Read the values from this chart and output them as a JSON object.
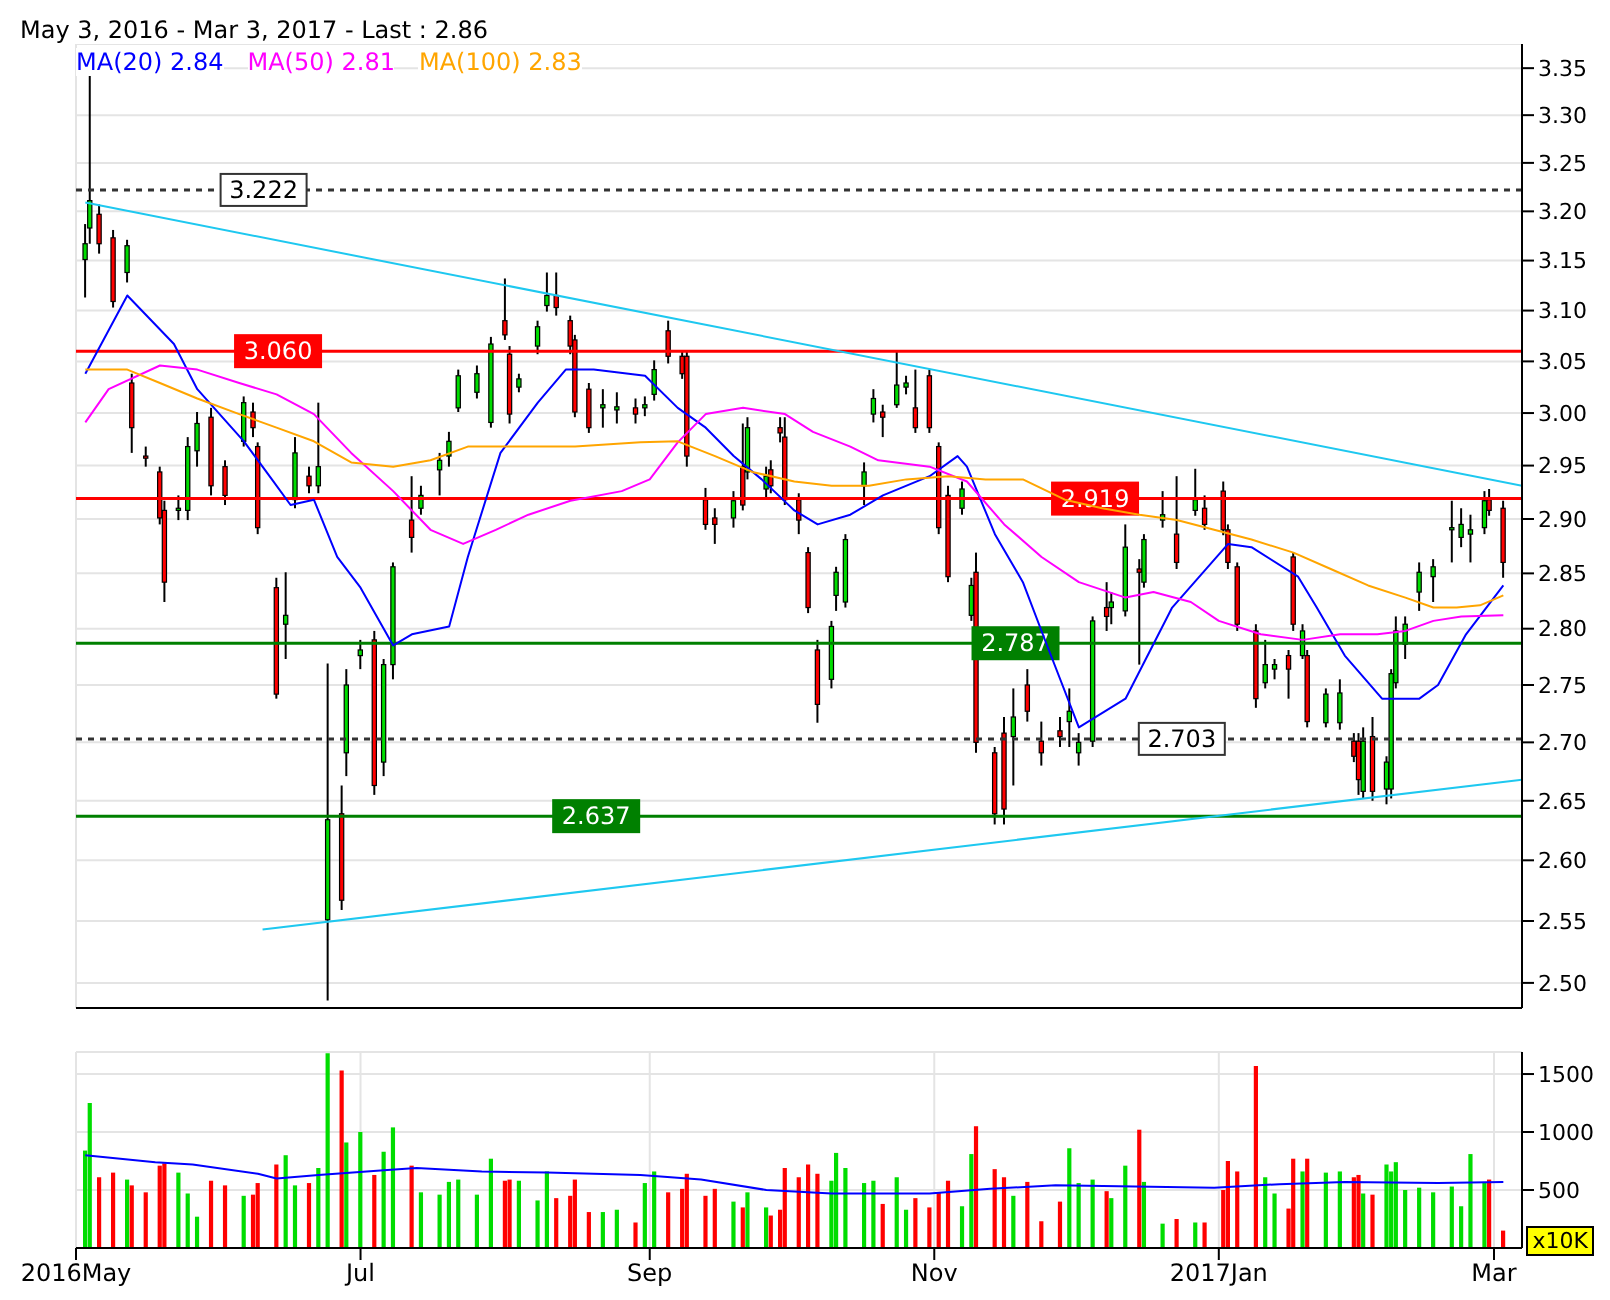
{
  "chart_data": [
    {
      "type": "candlestick",
      "title": "May 3, 2016 - Mar 3, 2017 - Last : 2.86",
      "x": [
        "2016-05-03",
        "2016-05-04",
        "2016-05-06",
        "2016-05-09",
        "2016-05-12",
        "2016-05-13",
        "2016-05-16",
        "2016-05-19",
        "2016-05-20",
        "2016-05-23",
        "2016-05-25",
        "2016-05-27",
        "2016-05-30",
        "2016-06-02",
        "2016-06-06",
        "2016-06-08",
        "2016-06-09",
        "2016-06-13",
        "2016-06-15",
        "2016-06-17",
        "2016-06-20",
        "2016-06-22",
        "2016-06-24",
        "2016-06-27",
        "2016-06-28",
        "2016-07-01",
        "2016-07-04",
        "2016-07-06",
        "2016-07-08",
        "2016-07-12",
        "2016-07-14",
        "2016-07-18",
        "2016-07-20",
        "2016-07-22",
        "2016-07-26",
        "2016-07-29",
        "2016-08-01",
        "2016-08-02",
        "2016-08-04",
        "2016-08-08",
        "2016-08-10",
        "2016-08-12",
        "2016-08-15",
        "2016-08-16",
        "2016-08-19",
        "2016-08-22",
        "2016-08-25",
        "2016-08-29",
        "2016-08-31",
        "2016-09-02",
        "2016-09-05",
        "2016-09-08",
        "2016-09-09",
        "2016-09-13",
        "2016-09-15",
        "2016-09-19",
        "2016-09-21",
        "2016-09-22",
        "2016-09-26",
        "2016-09-27",
        "2016-09-29",
        "2016-09-30",
        "2016-10-03",
        "2016-10-05",
        "2016-10-07",
        "2016-10-10",
        "2016-10-11",
        "2016-10-13",
        "2016-10-17",
        "2016-10-19",
        "2016-10-21",
        "2016-10-24",
        "2016-10-26",
        "2016-10-28",
        "2016-10-31",
        "2016-11-02",
        "2016-11-04",
        "2016-11-07",
        "2016-11-09",
        "2016-11-10",
        "2016-11-14",
        "2016-11-16",
        "2016-11-18",
        "2016-11-21",
        "2016-11-24",
        "2016-11-28",
        "2016-11-30",
        "2016-12-02",
        "2016-12-05",
        "2016-12-08",
        "2016-12-09",
        "2016-12-12",
        "2016-12-15",
        "2016-12-16",
        "2016-12-20",
        "2016-12-23",
        "2016-12-27",
        "2016-12-29",
        "2017-01-02",
        "2017-01-03",
        "2017-01-05",
        "2017-01-09",
        "2017-01-11",
        "2017-01-13",
        "2017-01-16",
        "2017-01-17",
        "2017-01-19",
        "2017-01-20",
        "2017-01-24",
        "2017-01-27",
        "2017-01-30",
        "2017-01-31",
        "2017-02-01",
        "2017-02-03",
        "2017-02-06",
        "2017-02-07",
        "2017-02-08",
        "2017-02-10",
        "2017-02-13",
        "2017-02-16",
        "2017-02-20",
        "2017-02-22",
        "2017-02-24",
        "2017-02-27",
        "2017-02-28",
        "2017-03-03"
      ],
      "ohlc": [
        [
          3.151,
          3.187,
          3.113,
          3.167
        ],
        [
          3.183,
          3.349,
          3.167,
          3.211
        ],
        [
          3.197,
          3.207,
          3.157,
          3.167
        ],
        [
          3.173,
          3.181,
          3.103,
          3.109
        ],
        [
          3.138,
          3.171,
          3.128,
          3.165
        ],
        [
          3.029,
          3.038,
          2.962,
          2.986
        ],
        [
          2.959,
          2.968,
          2.949,
          2.957
        ],
        [
          2.944,
          2.949,
          2.895,
          2.901
        ],
        [
          2.908,
          2.917,
          2.824,
          2.842
        ],
        [
          2.908,
          2.922,
          2.899,
          2.91
        ],
        [
          2.908,
          2.977,
          2.899,
          2.968
        ],
        [
          2.964,
          3.001,
          2.949,
          2.99
        ],
        [
          2.996,
          3.005,
          2.922,
          2.931
        ],
        [
          2.949,
          2.955,
          2.913,
          2.922
        ],
        [
          2.973,
          3.016,
          2.968,
          3.01
        ],
        [
          3.001,
          3.01,
          2.977,
          2.986
        ],
        [
          2.968,
          2.972,
          2.886,
          2.892
        ],
        [
          2.837,
          2.846,
          2.738,
          2.742
        ],
        [
          2.804,
          2.851,
          2.773,
          2.812
        ],
        [
          2.918,
          2.977,
          2.91,
          2.962
        ],
        [
          2.94,
          2.949,
          2.924,
          2.931
        ],
        [
          2.931,
          3.01,
          2.924,
          2.949
        ],
        [
          2.551,
          2.769,
          2.486,
          2.634
        ],
        [
          2.639,
          2.663,
          2.559,
          2.567
        ],
        [
          2.691,
          2.764,
          2.671,
          2.75
        ],
        [
          2.776,
          2.79,
          2.764,
          2.781
        ],
        [
          2.79,
          2.798,
          2.655,
          2.663
        ],
        [
          2.683,
          2.773,
          2.671,
          2.768
        ],
        [
          2.768,
          2.86,
          2.755,
          2.856
        ],
        [
          2.899,
          2.94,
          2.869,
          2.883
        ],
        [
          2.91,
          2.931,
          2.904,
          2.922
        ],
        [
          2.946,
          2.962,
          2.922,
          2.955
        ],
        [
          2.959,
          2.982,
          2.949,
          2.973
        ],
        [
          3.005,
          3.042,
          3.001,
          3.036
        ],
        [
          3.02,
          3.046,
          3.014,
          3.038
        ],
        [
          2.991,
          3.074,
          2.986,
          3.067
        ],
        [
          3.09,
          3.132,
          3.071,
          3.076
        ],
        [
          3.057,
          3.065,
          2.99,
          2.999
        ],
        [
          3.025,
          3.038,
          3.02,
          3.033
        ],
        [
          3.065,
          3.09,
          3.057,
          3.084
        ],
        [
          3.105,
          3.138,
          3.099,
          3.115
        ],
        [
          3.115,
          3.138,
          3.095,
          3.103
        ],
        [
          3.09,
          3.095,
          3.057,
          3.065
        ],
        [
          3.071,
          3.076,
          2.996,
          3.001
        ],
        [
          3.023,
          3.029,
          2.981,
          2.986
        ],
        [
          3.005,
          3.023,
          2.986,
          3.008
        ],
        [
          3.003,
          3.02,
          2.99,
          3.006
        ],
        [
          3.005,
          3.014,
          2.99,
          2.999
        ],
        [
          3.005,
          3.016,
          2.997,
          3.008
        ],
        [
          3.018,
          3.051,
          3.012,
          3.042
        ],
        [
          3.08,
          3.09,
          3.048,
          3.055
        ],
        [
          3.055,
          3.061,
          3.033,
          3.038
        ],
        [
          3.055,
          3.061,
          2.949,
          2.959
        ],
        [
          2.918,
          2.929,
          2.89,
          2.895
        ],
        [
          2.901,
          2.91,
          2.877,
          2.895
        ],
        [
          2.901,
          2.926,
          2.892,
          2.917
        ],
        [
          2.949,
          2.99,
          2.908,
          2.913
        ],
        [
          2.944,
          2.996,
          2.937,
          2.986
        ],
        [
          2.928,
          2.949,
          2.92,
          2.94
        ],
        [
          2.946,
          2.955,
          2.924,
          2.931
        ],
        [
          2.986,
          2.996,
          2.972,
          2.981
        ],
        [
          2.977,
          2.996,
          2.913,
          2.918
        ],
        [
          2.918,
          2.924,
          2.886,
          2.899
        ],
        [
          2.869,
          2.874,
          2.814,
          2.819
        ],
        [
          2.781,
          2.79,
          2.717,
          2.733
        ],
        [
          2.755,
          2.807,
          2.747,
          2.802
        ],
        [
          2.83,
          2.856,
          2.816,
          2.851
        ],
        [
          2.824,
          2.886,
          2.819,
          2.881
        ],
        [
          2.931,
          2.953,
          2.913,
          2.944
        ],
        [
          2.999,
          3.023,
          2.991,
          3.014
        ],
        [
          3.001,
          3.008,
          2.977,
          2.996
        ],
        [
          3.008,
          3.061,
          3.005,
          3.027
        ],
        [
          3.025,
          3.036,
          3.018,
          3.029
        ],
        [
          3.005,
          3.042,
          2.981,
          2.986
        ],
        [
          3.036,
          3.042,
          2.981,
          2.986
        ],
        [
          2.968,
          2.972,
          2.886,
          2.892
        ],
        [
          2.922,
          2.931,
          2.842,
          2.847
        ],
        [
          2.91,
          2.935,
          2.904,
          2.928
        ],
        [
          2.812,
          2.846,
          2.807,
          2.839
        ],
        [
          2.851,
          2.869,
          2.691,
          2.7
        ],
        [
          2.691,
          2.696,
          2.63,
          2.639
        ],
        [
          2.708,
          2.722,
          2.63,
          2.643
        ],
        [
          2.705,
          2.747,
          2.663,
          2.722
        ],
        [
          2.75,
          2.764,
          2.718,
          2.727
        ],
        [
          2.701,
          2.718,
          2.68,
          2.691
        ],
        [
          2.71,
          2.722,
          2.696,
          2.705
        ],
        [
          2.718,
          2.747,
          2.696,
          2.727
        ],
        [
          2.691,
          2.708,
          2.68,
          2.7
        ],
        [
          2.701,
          2.811,
          2.696,
          2.807
        ],
        [
          2.819,
          2.842,
          2.798,
          2.811
        ],
        [
          2.819,
          2.833,
          2.804,
          2.824
        ],
        [
          2.816,
          2.895,
          2.811,
          2.874
        ],
        [
          2.854,
          2.863,
          2.768,
          2.851
        ],
        [
          2.842,
          2.886,
          2.837,
          2.881
        ],
        [
          2.899,
          2.926,
          2.892,
          2.904
        ],
        [
          2.886,
          2.94,
          2.854,
          2.86
        ],
        [
          2.908,
          2.947,
          2.903,
          2.918
        ],
        [
          2.91,
          2.922,
          2.89,
          2.895
        ],
        [
          2.926,
          2.935,
          2.885,
          2.89
        ],
        [
          2.89,
          2.895,
          2.854,
          2.86
        ],
        [
          2.856,
          2.86,
          2.798,
          2.804
        ],
        [
          2.798,
          2.804,
          2.73,
          2.738
        ],
        [
          2.752,
          2.79,
          2.747,
          2.768
        ],
        [
          2.764,
          2.773,
          2.755,
          2.768
        ],
        [
          2.776,
          2.781,
          2.738,
          2.764
        ],
        [
          2.865,
          2.869,
          2.798,
          2.804
        ],
        [
          2.776,
          2.804,
          2.773,
          2.798
        ],
        [
          2.776,
          2.781,
          2.713,
          2.718
        ],
        [
          2.717,
          2.747,
          2.713,
          2.742
        ],
        [
          2.717,
          2.755,
          2.711,
          2.743
        ],
        [
          2.701,
          2.708,
          2.683,
          2.688
        ],
        [
          2.701,
          2.708,
          2.655,
          2.668
        ],
        [
          2.658,
          2.713,
          2.652,
          2.701
        ],
        [
          2.705,
          2.722,
          2.65,
          2.658
        ],
        [
          2.66,
          2.688,
          2.647,
          2.683
        ],
        [
          2.66,
          2.764,
          2.652,
          2.76
        ],
        [
          2.752,
          2.811,
          2.747,
          2.798
        ],
        [
          2.786,
          2.811,
          2.773,
          2.804
        ],
        [
          2.833,
          2.86,
          2.816,
          2.851
        ],
        [
          2.847,
          2.863,
          2.824,
          2.856
        ],
        [
          2.89,
          2.917,
          2.86,
          2.892
        ],
        [
          2.883,
          2.91,
          2.874,
          2.895
        ],
        [
          2.886,
          2.904,
          2.86,
          2.89
        ],
        [
          2.892,
          2.926,
          2.886,
          2.917
        ],
        [
          2.918,
          2.928,
          2.903,
          2.908
        ],
        [
          2.91,
          2.917,
          2.846,
          2.86
        ]
      ],
      "colors": [
        "#00dd00",
        "#00dd00",
        "#ff0000",
        "#ff0000",
        "#00dd00",
        "#ff0000",
        "#ff0000",
        "#ff0000",
        "#ff0000",
        "#00dd00",
        "#00dd00",
        "#00dd00",
        "#ff0000",
        "#ff0000",
        "#00dd00",
        "#ff0000",
        "#ff0000",
        "#ff0000",
        "#00dd00",
        "#00dd00",
        "#ff0000",
        "#00dd00",
        "#00dd00",
        "#ff0000",
        "#00dd00",
        "#00dd00",
        "#ff0000",
        "#00dd00",
        "#00dd00",
        "#ff0000",
        "#00dd00",
        "#00dd00",
        "#00dd00",
        "#00dd00",
        "#00dd00",
        "#00dd00",
        "#ff0000",
        "#ff0000",
        "#00dd00",
        "#00dd00",
        "#00dd00",
        "#ff0000",
        "#ff0000",
        "#ff0000",
        "#ff0000",
        "#00dd00",
        "#00dd00",
        "#ff0000",
        "#00dd00",
        "#00dd00",
        "#ff0000",
        "#ff0000",
        "#ff0000",
        "#ff0000",
        "#ff0000",
        "#00dd00",
        "#ff0000",
        "#00dd00",
        "#00dd00",
        "#ff0000",
        "#ff0000",
        "#ff0000",
        "#ff0000",
        "#ff0000",
        "#ff0000",
        "#00dd00",
        "#00dd00",
        "#00dd00",
        "#00dd00",
        "#00dd00",
        "#ff0000",
        "#00dd00",
        "#00dd00",
        "#ff0000",
        "#ff0000",
        "#ff0000",
        "#ff0000",
        "#00dd00",
        "#00dd00",
        "#ff0000",
        "#ff0000",
        "#ff0000",
        "#00dd00",
        "#ff0000",
        "#ff0000",
        "#ff0000",
        "#00dd00",
        "#00dd00",
        "#00dd00",
        "#ff0000",
        "#00dd00",
        "#00dd00",
        "#ff0000",
        "#00dd00",
        "#00dd00",
        "#ff0000",
        "#00dd00",
        "#ff0000",
        "#ff0000",
        "#ff0000",
        "#ff0000",
        "#ff0000",
        "#00dd00",
        "#00dd00",
        "#ff0000",
        "#ff0000",
        "#00dd00",
        "#ff0000",
        "#00dd00",
        "#00dd00",
        "#ff0000",
        "#ff0000",
        "#00dd00",
        "#ff0000",
        "#00dd00",
        "#00dd00",
        "#00dd00",
        "#00dd00",
        "#00dd00",
        "#00dd00",
        "#00dd00",
        "#00dd00",
        "#00dd00",
        "#00dd00",
        "#ff0000",
        "#ff0000"
      ],
      "series": [
        {
          "type": "line",
          "name": "MA(20)  2.84",
          "color": "#0000ff",
          "x": [
            "2016-05-03",
            "2016-05-12",
            "2016-05-22",
            "2016-05-27",
            "2016-06-06",
            "2016-06-12",
            "2016-06-16",
            "2016-06-21",
            "2016-06-26",
            "2016-07-01",
            "2016-07-08",
            "2016-07-12",
            "2016-07-20",
            "2016-07-24",
            "2016-07-31",
            "2016-08-08",
            "2016-08-14",
            "2016-08-20",
            "2016-08-31",
            "2016-09-07",
            "2016-09-13",
            "2016-09-19",
            "2016-09-25",
            "2016-10-02",
            "2016-10-07",
            "2016-10-14",
            "2016-10-21",
            "2016-10-31",
            "2016-11-06",
            "2016-11-08",
            "2016-11-14",
            "2016-11-20",
            "2016-11-25",
            "2016-12-02",
            "2016-12-12",
            "2016-12-22",
            "2017-01-03",
            "2017-01-08",
            "2017-01-18",
            "2017-01-22",
            "2017-01-28",
            "2017-02-05",
            "2017-02-13",
            "2017-02-17",
            "2017-02-23",
            "2017-03-03"
          ],
          "values": [
            3.038,
            3.115,
            3.067,
            3.023,
            2.973,
            2.937,
            2.913,
            2.918,
            2.865,
            2.837,
            2.785,
            2.795,
            2.802,
            2.865,
            2.962,
            3.01,
            3.042,
            3.042,
            3.036,
            3.005,
            2.986,
            2.959,
            2.937,
            2.908,
            2.895,
            2.904,
            2.922,
            2.94,
            2.959,
            2.949,
            2.886,
            2.842,
            2.787,
            2.713,
            2.738,
            2.819,
            2.877,
            2.874,
            2.847,
            2.819,
            2.776,
            2.738,
            2.738,
            2.75,
            2.795,
            2.839
          ]
        },
        {
          "type": "line",
          "name": "MA(50)  2.81",
          "color": "#ff00ff",
          "x": [
            "2016-05-03",
            "2016-05-08",
            "2016-05-19",
            "2016-05-27",
            "2016-06-05",
            "2016-06-13",
            "2016-06-21",
            "2016-06-29",
            "2016-07-08",
            "2016-07-16",
            "2016-07-23",
            "2016-07-30",
            "2016-08-06",
            "2016-08-15",
            "2016-08-26",
            "2016-09-01",
            "2016-09-07",
            "2016-09-13",
            "2016-09-21",
            "2016-09-30",
            "2016-10-06",
            "2016-10-14",
            "2016-10-20",
            "2016-10-31",
            "2016-11-08",
            "2016-11-16",
            "2016-11-24",
            "2016-12-02",
            "2016-12-12",
            "2016-12-18",
            "2016-12-26",
            "2017-01-01",
            "2017-01-10",
            "2017-01-19",
            "2017-01-27",
            "2017-02-04",
            "2017-02-10",
            "2017-02-16",
            "2017-02-22",
            "2017-03-03"
          ],
          "values": [
            2.991,
            3.023,
            3.046,
            3.042,
            3.029,
            3.018,
            2.999,
            2.962,
            2.926,
            2.89,
            2.877,
            2.89,
            2.904,
            2.917,
            2.926,
            2.937,
            2.972,
            2.999,
            3.005,
            2.999,
            2.982,
            2.968,
            2.955,
            2.949,
            2.935,
            2.895,
            2.865,
            2.842,
            2.828,
            2.833,
            2.824,
            2.807,
            2.795,
            2.79,
            2.795,
            2.795,
            2.798,
            2.807,
            2.811,
            2.812
          ]
        },
        {
          "type": "line",
          "name": "MA(100)  2.83",
          "color": "#ffa500",
          "x": [
            "2016-05-03",
            "2016-05-12",
            "2016-05-19",
            "2016-05-27",
            "2016-06-05",
            "2016-06-13",
            "2016-06-21",
            "2016-06-29",
            "2016-07-08",
            "2016-07-16",
            "2016-07-24",
            "2016-08-01",
            "2016-08-16",
            "2016-08-30",
            "2016-09-07",
            "2016-09-15",
            "2016-09-23",
            "2016-10-02",
            "2016-10-10",
            "2016-10-18",
            "2016-10-26",
            "2016-11-04",
            "2016-11-12",
            "2016-11-20",
            "2016-11-29",
            "2016-12-07",
            "2016-12-15",
            "2016-12-23",
            "2016-12-31",
            "2017-01-08",
            "2017-01-17",
            "2017-01-25",
            "2017-02-02",
            "2017-02-10",
            "2017-02-16",
            "2017-02-21",
            "2017-02-26",
            "2017-03-03"
          ],
          "values": [
            3.042,
            3.042,
            3.029,
            3.014,
            2.999,
            2.986,
            2.973,
            2.953,
            2.949,
            2.955,
            2.968,
            2.968,
            2.968,
            2.972,
            2.973,
            2.959,
            2.944,
            2.935,
            2.931,
            2.931,
            2.937,
            2.94,
            2.937,
            2.937,
            2.918,
            2.91,
            2.904,
            2.899,
            2.89,
            2.881,
            2.869,
            2.854,
            2.839,
            2.828,
            2.819,
            2.819,
            2.821,
            2.83
          ]
        },
        {
          "type": "line",
          "color": "#1ec8f0",
          "x": [
            "2016-05-03",
            "2017-03-07"
          ],
          "values": [
            3.209,
            2.931
          ]
        },
        {
          "type": "line",
          "color": "#1ec8f0",
          "x": [
            "2016-06-10",
            "2017-03-07"
          ],
          "values": [
            2.543,
            2.668
          ]
        }
      ],
      "ref_lines": [
        {
          "axis": "y",
          "value": 3.222,
          "label": "3.222",
          "color": "#333333",
          "line_style": "dashed"
        },
        {
          "axis": "y",
          "value": 3.06,
          "label": "3.060",
          "color": "#ff0000"
        },
        {
          "axis": "y",
          "value": 2.919,
          "label": "2.919",
          "color": "#ff0000"
        },
        {
          "axis": "y",
          "value": 2.787,
          "label": "2.787",
          "color": "#008000"
        },
        {
          "axis": "y",
          "value": 2.703,
          "label": "2.703",
          "color": "#333333",
          "line_style": "dashed"
        },
        {
          "axis": "y",
          "value": 2.637,
          "label": "2.637",
          "color": "#008000"
        }
      ],
      "log": "y",
      "ylim": [
        2.48,
        3.376
      ],
      "yticks": [
        {
          "value": 2.5,
          "label": "2.50"
        },
        {
          "value": 2.55,
          "label": "2.55"
        },
        {
          "value": 2.6,
          "label": "2.60"
        },
        {
          "value": 2.65,
          "label": "2.65"
        },
        {
          "value": 2.7,
          "label": "2.70"
        },
        {
          "value": 2.75,
          "label": "2.75"
        },
        {
          "value": 2.8,
          "label": "2.80"
        },
        {
          "value": 2.85,
          "label": "2.85"
        },
        {
          "value": 2.9,
          "label": "2.90"
        },
        {
          "value": 2.95,
          "label": "2.95"
        },
        {
          "value": 3.0,
          "label": "3.00"
        },
        {
          "value": 3.05,
          "label": "3.05"
        },
        {
          "value": 3.1,
          "label": "3.10"
        },
        {
          "value": 3.15,
          "label": "3.15"
        },
        {
          "value": 3.2,
          "label": "3.20"
        },
        {
          "value": 3.25,
          "label": "3.25"
        },
        {
          "value": 3.3,
          "label": "3.30"
        },
        {
          "value": 3.35,
          "label": "3.35"
        }
      ],
      "xlim": [
        "2016-05-01",
        "2017-03-07"
      ],
      "xticks": [
        {
          "value": "2016-05-01",
          "label": null
        },
        {
          "value": "2016-07-01",
          "label": null
        },
        {
          "value": "2016-09-01",
          "label": null
        },
        {
          "value": "2016-11-01",
          "label": null
        },
        {
          "value": "2017-01-01",
          "label": null
        },
        {
          "value": "2017-03-01",
          "label": null
        }
      ],
      "tick_labels": "y",
      "grid": true,
      "legend": "top left"
    },
    {
      "type": "bar",
      "ylabel": "x10K",
      "x": [
        "2016-05-03",
        "2016-05-04",
        "2016-05-06",
        "2016-05-09",
        "2016-05-12",
        "2016-05-13",
        "2016-05-16",
        "2016-05-19",
        "2016-05-20",
        "2016-05-23",
        "2016-05-25",
        "2016-05-27",
        "2016-05-30",
        "2016-06-02",
        "2016-06-06",
        "2016-06-08",
        "2016-06-09",
        "2016-06-13",
        "2016-06-15",
        "2016-06-17",
        "2016-06-20",
        "2016-06-22",
        "2016-06-24",
        "2016-06-27",
        "2016-06-28",
        "2016-07-01",
        "2016-07-04",
        "2016-07-06",
        "2016-07-08",
        "2016-07-12",
        "2016-07-14",
        "2016-07-18",
        "2016-07-20",
        "2016-07-22",
        "2016-07-26",
        "2016-07-29",
        "2016-08-01",
        "2016-08-02",
        "2016-08-04",
        "2016-08-08",
        "2016-08-10",
        "2016-08-12",
        "2016-08-15",
        "2016-08-16",
        "2016-08-19",
        "2016-08-22",
        "2016-08-25",
        "2016-08-29",
        "2016-08-31",
        "2016-09-02",
        "2016-09-05",
        "2016-09-08",
        "2016-09-09",
        "2016-09-13",
        "2016-09-15",
        "2016-09-19",
        "2016-09-21",
        "2016-09-22",
        "2016-09-26",
        "2016-09-27",
        "2016-09-29",
        "2016-09-30",
        "2016-10-03",
        "2016-10-05",
        "2016-10-07",
        "2016-10-10",
        "2016-10-11",
        "2016-10-13",
        "2016-10-17",
        "2016-10-19",
        "2016-10-21",
        "2016-10-24",
        "2016-10-26",
        "2016-10-28",
        "2016-10-31",
        "2016-11-02",
        "2016-11-04",
        "2016-11-07",
        "2016-11-09",
        "2016-11-10",
        "2016-11-14",
        "2016-11-16",
        "2016-11-18",
        "2016-11-21",
        "2016-11-24",
        "2016-11-28",
        "2016-11-30",
        "2016-12-02",
        "2016-12-05",
        "2016-12-08",
        "2016-12-09",
        "2016-12-12",
        "2016-12-15",
        "2016-12-16",
        "2016-12-20",
        "2016-12-23",
        "2016-12-27",
        "2016-12-29",
        "2017-01-02",
        "2017-01-03",
        "2017-01-05",
        "2017-01-09",
        "2017-01-11",
        "2017-01-13",
        "2017-01-16",
        "2017-01-17",
        "2017-01-19",
        "2017-01-20",
        "2017-01-24",
        "2017-01-27",
        "2017-01-30",
        "2017-01-31",
        "2017-02-01",
        "2017-02-03",
        "2017-02-06",
        "2017-02-07",
        "2017-02-08",
        "2017-02-10",
        "2017-02-13",
        "2017-02-16",
        "2017-02-20",
        "2017-02-22",
        "2017-02-24",
        "2017-02-27",
        "2017-02-28",
        "2017-03-03"
      ],
      "series": [
        {
          "type": "bar",
          "values": [
            840,
            1250,
            610,
            650,
            590,
            540,
            480,
            710,
            730,
            650,
            470,
            270,
            580,
            540,
            450,
            460,
            560,
            720,
            800,
            540,
            560,
            690,
            1680,
            1530,
            910,
            1000,
            630,
            830,
            1040,
            710,
            480,
            460,
            570,
            590,
            460,
            770,
            580,
            590,
            580,
            410,
            660,
            430,
            450,
            590,
            310,
            310,
            330,
            220,
            560,
            660,
            480,
            510,
            640,
            450,
            510,
            400,
            350,
            480,
            350,
            280,
            330,
            690,
            610,
            720,
            640,
            580,
            820,
            690,
            560,
            580,
            380,
            610,
            330,
            430,
            350,
            480,
            580,
            360,
            810,
            1050,
            680,
            610,
            450,
            570,
            230,
            400,
            860,
            560,
            590,
            490,
            430,
            710,
            1020,
            570,
            210,
            250,
            220,
            220,
            500,
            750,
            660,
            1570,
            610,
            470,
            340,
            770,
            660,
            770,
            650,
            660,
            610,
            630,
            470,
            460,
            720,
            660,
            740,
            500,
            520,
            480,
            530,
            360,
            810,
            570,
            590,
            150
          ],
          "colors": [
            "#00dd00",
            "#00dd00",
            "#ff0000",
            "#ff0000",
            "#00dd00",
            "#ff0000",
            "#ff0000",
            "#ff0000",
            "#ff0000",
            "#00dd00",
            "#00dd00",
            "#00dd00",
            "#ff0000",
            "#ff0000",
            "#00dd00",
            "#ff0000",
            "#ff0000",
            "#ff0000",
            "#00dd00",
            "#00dd00",
            "#ff0000",
            "#00dd00",
            "#00dd00",
            "#ff0000",
            "#00dd00",
            "#00dd00",
            "#ff0000",
            "#00dd00",
            "#00dd00",
            "#ff0000",
            "#00dd00",
            "#00dd00",
            "#00dd00",
            "#00dd00",
            "#00dd00",
            "#00dd00",
            "#ff0000",
            "#ff0000",
            "#00dd00",
            "#00dd00",
            "#00dd00",
            "#ff0000",
            "#ff0000",
            "#ff0000",
            "#ff0000",
            "#00dd00",
            "#00dd00",
            "#ff0000",
            "#00dd00",
            "#00dd00",
            "#ff0000",
            "#ff0000",
            "#ff0000",
            "#ff0000",
            "#ff0000",
            "#00dd00",
            "#ff0000",
            "#00dd00",
            "#00dd00",
            "#ff0000",
            "#ff0000",
            "#ff0000",
            "#ff0000",
            "#ff0000",
            "#ff0000",
            "#00dd00",
            "#00dd00",
            "#00dd00",
            "#00dd00",
            "#00dd00",
            "#ff0000",
            "#00dd00",
            "#00dd00",
            "#ff0000",
            "#ff0000",
            "#ff0000",
            "#ff0000",
            "#00dd00",
            "#00dd00",
            "#ff0000",
            "#ff0000",
            "#ff0000",
            "#00dd00",
            "#ff0000",
            "#ff0000",
            "#ff0000",
            "#00dd00",
            "#00dd00",
            "#00dd00",
            "#ff0000",
            "#00dd00",
            "#00dd00",
            "#ff0000",
            "#00dd00",
            "#00dd00",
            "#ff0000",
            "#00dd00",
            "#ff0000",
            "#ff0000",
            "#ff0000",
            "#ff0000",
            "#ff0000",
            "#00dd00",
            "#00dd00",
            "#ff0000",
            "#ff0000",
            "#00dd00",
            "#ff0000",
            "#00dd00",
            "#00dd00",
            "#ff0000",
            "#ff0000",
            "#00dd00",
            "#ff0000",
            "#00dd00",
            "#00dd00",
            "#00dd00",
            "#00dd00",
            "#00dd00",
            "#00dd00",
            "#00dd00",
            "#00dd00",
            "#00dd00",
            "#00dd00",
            "#ff0000",
            "#ff0000"
          ]
        },
        {
          "type": "line",
          "color": "#0000ff",
          "x": [
            "2016-05-03",
            "2016-05-18",
            "2016-05-26",
            "2016-06-09",
            "2016-06-13",
            "2016-06-22",
            "2016-07-06",
            "2016-07-13",
            "2016-07-27",
            "2016-08-10",
            "2016-08-30",
            "2016-09-12",
            "2016-09-26",
            "2016-10-10",
            "2016-10-31",
            "2016-11-13",
            "2016-11-27",
            "2016-12-31",
            "2017-01-14",
            "2017-01-28",
            "2017-02-17",
            "2017-03-03"
          ],
          "values": [
            800,
            740,
            720,
            640,
            600,
            630,
            670,
            690,
            660,
            650,
            630,
            590,
            500,
            470,
            470,
            510,
            540,
            520,
            550,
            570,
            560,
            570
          ]
        }
      ],
      "ylim": [
        0,
        1690
      ],
      "yticks": [
        500,
        1000,
        1500
      ],
      "xlim": [
        "2016-05-01",
        "2017-03-07"
      ],
      "xticks": [
        {
          "value": "2016-05-01",
          "label": "2016May"
        },
        {
          "value": "2016-07-01",
          "label": "Jul"
        },
        {
          "value": "2016-09-01",
          "label": "Sep"
        },
        {
          "value": "2016-11-01",
          "label": "Nov"
        },
        {
          "value": "2017-01-01",
          "label": "2017Jan"
        },
        {
          "value": "2017-03-01",
          "label": "Mar"
        }
      ],
      "grid": true
    }
  ]
}
